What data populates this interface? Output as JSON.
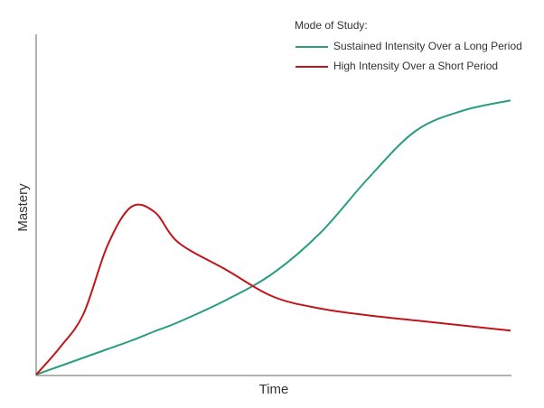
{
  "chart_data": {
    "type": "line",
    "x_label": "Time",
    "y_label": "Mastery",
    "legend_title": "Mode of Study:",
    "legend": "upper right",
    "x": [
      0,
      5,
      10,
      15,
      20,
      25,
      30,
      40,
      50,
      60,
      70,
      80,
      90,
      100
    ],
    "xlim": [
      0,
      100
    ],
    "ylim": [
      0,
      100
    ],
    "series": [
      {
        "name": "Sustained Intensity Over a Long Period",
        "color": "#2a9d80",
        "values": [
          0,
          2.5,
          5,
          7.5,
          10,
          12.8,
          15.5,
          22,
          30,
          42,
          58,
          72,
          78,
          81
        ]
      },
      {
        "name": "High Intensity Over a Short Period",
        "color": "#c0161b",
        "values": [
          0,
          8,
          18,
          38,
          49.5,
          48,
          39,
          31,
          23,
          19.5,
          17.5,
          16,
          14.5,
          13
        ]
      }
    ]
  }
}
